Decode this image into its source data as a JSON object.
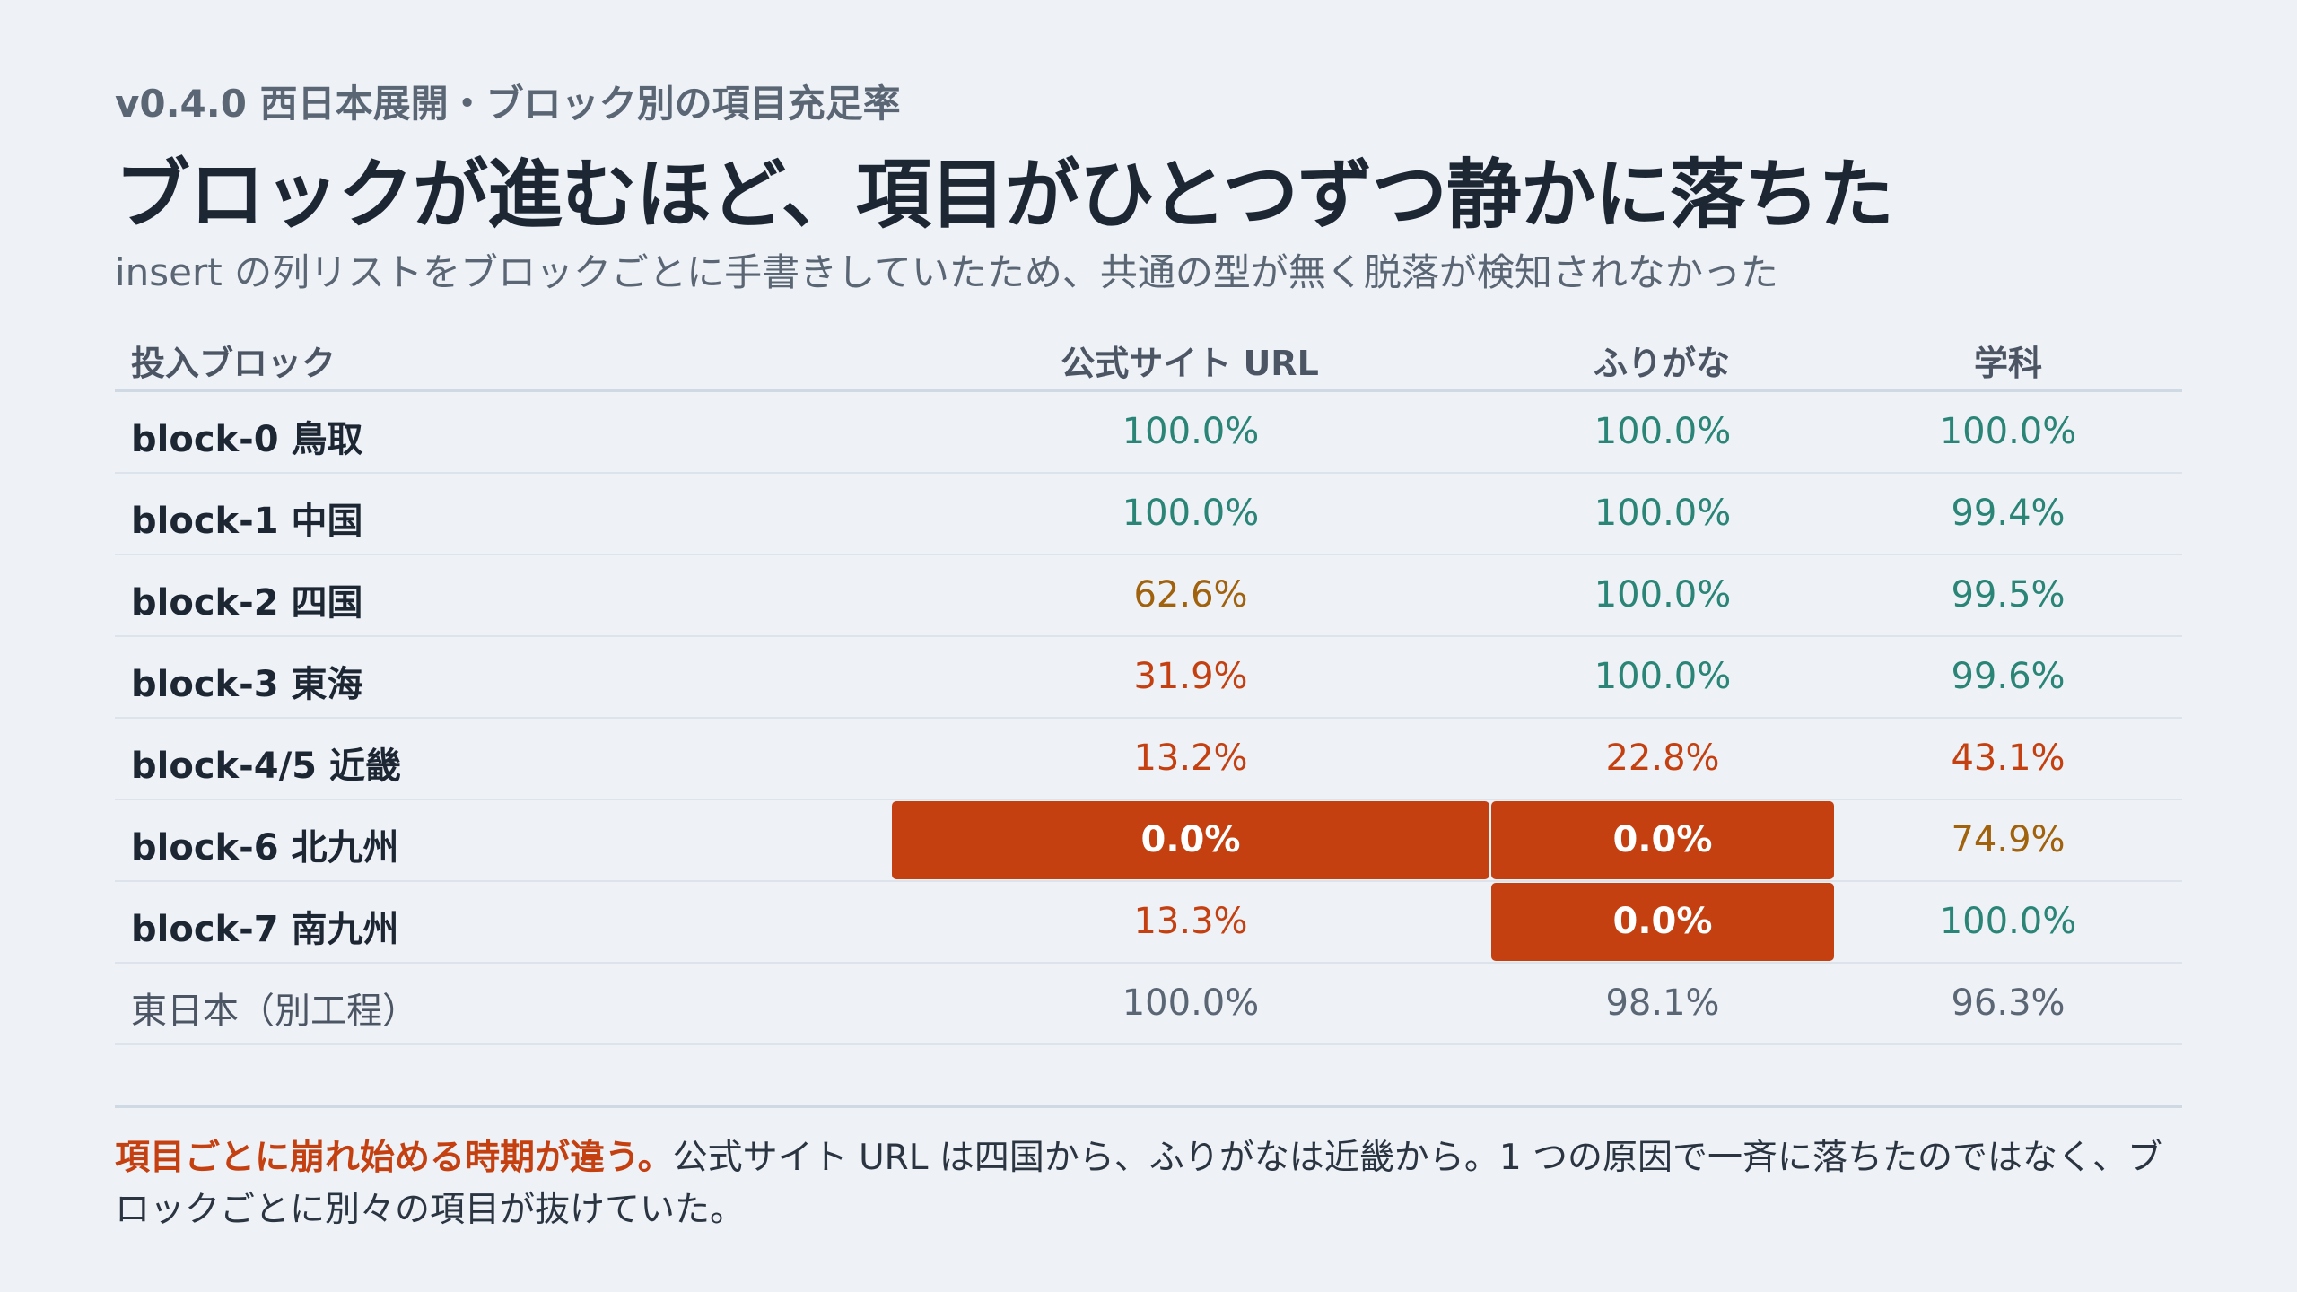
{
  "eyebrow": "v0.4.0 西日本展開・ブロック別の項目充足率",
  "headline": "ブロックが進むほど、項目がひとつずつ静かに落ちた",
  "subhead": "insert の列リストをブロックごとに手書きしていたため、共通の型が無く脱落が検知されなかった",
  "colors": {
    "ok": "#2a8577",
    "warn": "#a1620e",
    "bad": "#c44010",
    "neutral": "#5b6675",
    "highlight_bg": "#c44010"
  },
  "chart_data": {
    "type": "table",
    "columns": [
      "投入ブロック",
      "公式サイト URL",
      "ふりがな",
      "学科"
    ],
    "rows": [
      {
        "label": "block-0 鳥取",
        "cells": [
          "100.0%",
          "100.0%",
          "100.0%"
        ],
        "values": [
          100.0,
          100.0,
          100.0
        ],
        "status": [
          "ok",
          "ok",
          "ok"
        ]
      },
      {
        "label": "block-1 中国",
        "cells": [
          "100.0%",
          "100.0%",
          "99.4%"
        ],
        "values": [
          100.0,
          100.0,
          99.4
        ],
        "status": [
          "ok",
          "ok",
          "ok"
        ]
      },
      {
        "label": "block-2 四国",
        "cells": [
          "62.6%",
          "100.0%",
          "99.5%"
        ],
        "values": [
          62.6,
          100.0,
          99.5
        ],
        "status": [
          "warn",
          "ok",
          "ok"
        ]
      },
      {
        "label": "block-3 東海",
        "cells": [
          "31.9%",
          "100.0%",
          "99.6%"
        ],
        "values": [
          31.9,
          100.0,
          99.6
        ],
        "status": [
          "bad",
          "ok",
          "ok"
        ]
      },
      {
        "label": "block-4/5 近畿",
        "cells": [
          "13.2%",
          "22.8%",
          "43.1%"
        ],
        "values": [
          13.2,
          22.8,
          43.1
        ],
        "status": [
          "bad",
          "bad",
          "bad"
        ]
      },
      {
        "label": "block-6 北九州",
        "cells": [
          "0.0%",
          "0.0%",
          "74.9%"
        ],
        "values": [
          0.0,
          0.0,
          74.9
        ],
        "status": [
          "highlight",
          "highlight",
          "warn"
        ]
      },
      {
        "label": "block-7 南九州",
        "cells": [
          "13.3%",
          "0.0%",
          "100.0%"
        ],
        "values": [
          13.3,
          0.0,
          100.0
        ],
        "status": [
          "bad",
          "highlight",
          "ok"
        ]
      },
      {
        "label": "東日本（別工程）",
        "cells": [
          "100.0%",
          "98.1%",
          "96.3%"
        ],
        "values": [
          100.0,
          98.1,
          96.3
        ],
        "status": [
          "neutral",
          "neutral",
          "neutral"
        ],
        "muted": true
      }
    ]
  },
  "note": {
    "emphasis": "項目ごとに崩れ始める時期が違う。",
    "body": "公式サイト URL は四国から、ふりがなは近畿から。1 つの原因で一斉に落ちたのではなく、ブロックごとに別々の項目が抜けていた。"
  }
}
